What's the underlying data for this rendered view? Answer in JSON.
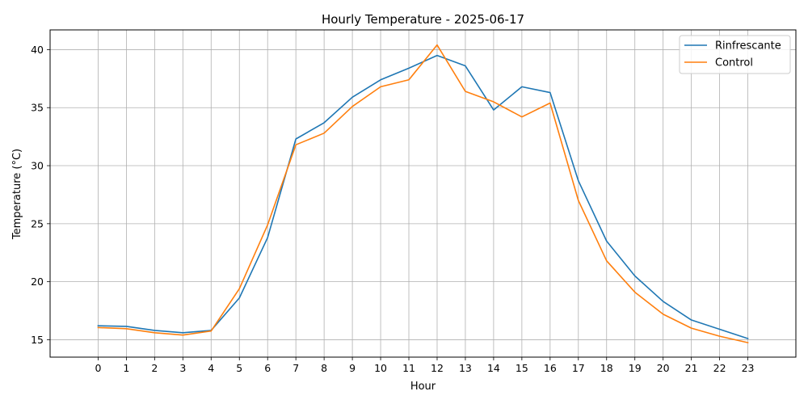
{
  "chart_data": {
    "type": "line",
    "title": "Hourly Temperature - 2025-06-17",
    "xlabel": "Hour",
    "ylabel": "Temperature (°C)",
    "x": [
      0,
      1,
      2,
      3,
      4,
      5,
      6,
      7,
      8,
      9,
      10,
      11,
      12,
      13,
      14,
      15,
      16,
      17,
      18,
      19,
      20,
      21,
      22,
      23
    ],
    "xlim": [
      -1.7,
      24.7
    ],
    "ylim": [
      13.5,
      41.7
    ],
    "yticks": [
      15,
      20,
      25,
      30,
      35,
      40
    ],
    "grid": true,
    "legend_position": "top-right",
    "series": [
      {
        "name": "Rinfrescante",
        "color": "#1f77b4",
        "values": [
          16.2,
          16.15,
          15.8,
          15.6,
          15.8,
          18.6,
          23.8,
          32.3,
          33.7,
          35.9,
          37.4,
          38.4,
          39.5,
          38.6,
          34.8,
          36.8,
          36.3,
          28.7,
          23.5,
          20.5,
          18.3,
          16.7,
          15.9,
          15.1
        ]
      },
      {
        "name": "Control",
        "color": "#ff7f0e",
        "values": [
          16.05,
          15.95,
          15.6,
          15.4,
          15.75,
          19.4,
          24.9,
          31.8,
          32.8,
          35.1,
          36.8,
          37.4,
          40.4,
          36.4,
          35.5,
          34.2,
          35.4,
          27.0,
          21.8,
          19.1,
          17.2,
          16.0,
          15.3,
          14.75
        ]
      }
    ]
  }
}
